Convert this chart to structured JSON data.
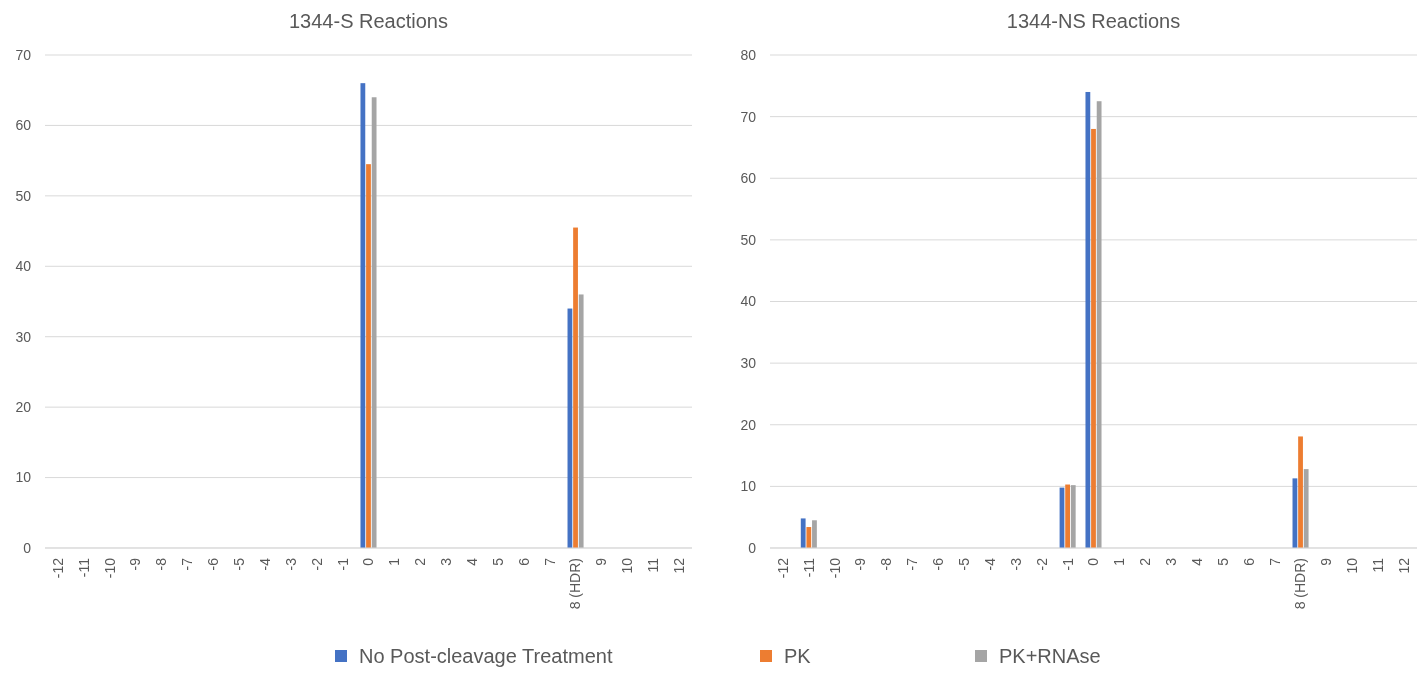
{
  "chart_data": [
    {
      "type": "bar",
      "title": "1344-S Reactions",
      "categories": [
        "-12",
        "-11",
        "-10",
        "-9",
        "-8",
        "-7",
        "-6",
        "-5",
        "-4",
        "-3",
        "-2",
        "-1",
        "0",
        "1",
        "2",
        "3",
        "4",
        "5",
        "6",
        "7",
        "8 (HDR)",
        "9",
        "10",
        "11",
        "12"
      ],
      "series": [
        {
          "name": "No Post-cleavage Treatment",
          "color": "#4472c4",
          "values": [
            0,
            0,
            0,
            0,
            0,
            0,
            0,
            0,
            0,
            0,
            0,
            0,
            66,
            0,
            0,
            0,
            0,
            0,
            0,
            0,
            34,
            0,
            0,
            0,
            0
          ]
        },
        {
          "name": "PK",
          "color": "#ed7d31",
          "values": [
            0,
            0,
            0,
            0,
            0,
            0,
            0,
            0,
            0,
            0,
            0,
            0,
            54.5,
            0,
            0,
            0,
            0,
            0,
            0,
            0,
            45.5,
            0,
            0,
            0,
            0
          ]
        },
        {
          "name": "PK+RNAse",
          "color": "#a5a5a5",
          "values": [
            0,
            0,
            0,
            0,
            0,
            0,
            0,
            0,
            0,
            0,
            0,
            0,
            64,
            0,
            0,
            0,
            0,
            0,
            0,
            0,
            36,
            0,
            0,
            0,
            0
          ]
        }
      ],
      "ylim": [
        0,
        70
      ],
      "yticks": [
        0,
        10,
        20,
        30,
        40,
        50,
        60,
        70
      ],
      "grid": "y",
      "legend": "bottom"
    },
    {
      "type": "bar",
      "title": "1344-NS Reactions",
      "categories": [
        "-12",
        "-11",
        "-10",
        "-9",
        "-8",
        "-7",
        "-6",
        "-5",
        "-4",
        "-3",
        "-2",
        "-1",
        "0",
        "1",
        "2",
        "3",
        "4",
        "5",
        "6",
        "7",
        "8 (HDR)",
        "9",
        "10",
        "11",
        "12"
      ],
      "series": [
        {
          "color": "#4472c4",
          "values": [
            0,
            4.8,
            0,
            0,
            0,
            0,
            0,
            0,
            0,
            0,
            0,
            9.8,
            74,
            0,
            0,
            0,
            0,
            0,
            0,
            0,
            11.3,
            0,
            0,
            0,
            0
          ]
        },
        {
          "color": "#ed7d31",
          "values": [
            0,
            3.4,
            0,
            0,
            0,
            0,
            0,
            0,
            0,
            0,
            0,
            10.3,
            68,
            0,
            0,
            0,
            0,
            0,
            0,
            0,
            18.1,
            0,
            0,
            0,
            0
          ]
        },
        {
          "color": "#a5a5a5",
          "values": [
            0,
            4.5,
            0,
            0,
            0,
            0,
            0,
            0,
            0,
            0,
            0,
            10.2,
            72.5,
            0,
            0,
            0,
            0,
            0,
            0,
            0,
            12.8,
            0,
            0,
            0,
            0
          ]
        }
      ],
      "ylim": [
        0,
        80
      ],
      "yticks": [
        0,
        10,
        20,
        30,
        40,
        50,
        60,
        70,
        80
      ],
      "grid": "y"
    }
  ]
}
